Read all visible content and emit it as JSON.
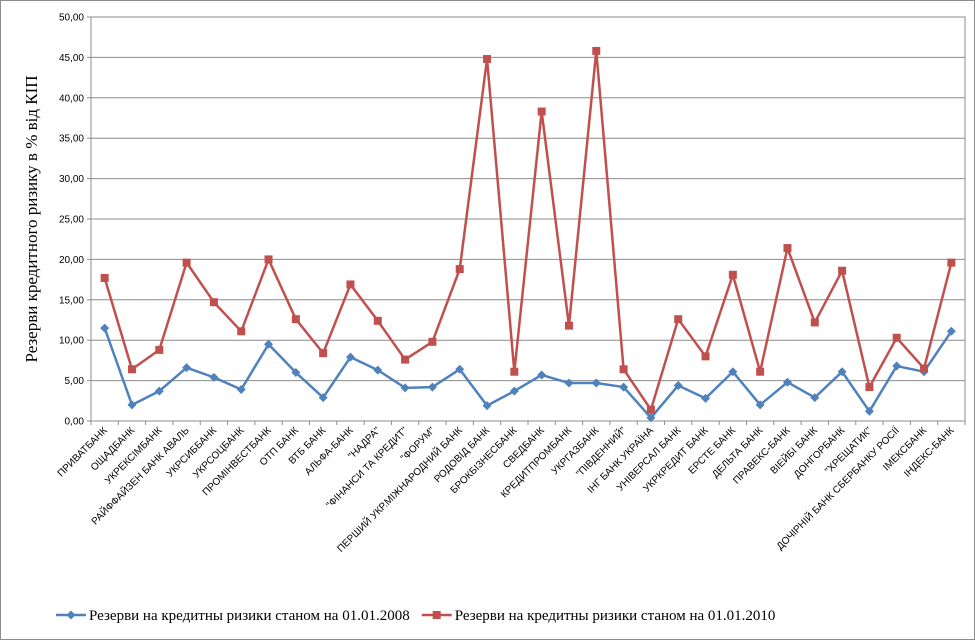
{
  "chart_data": {
    "type": "line",
    "ylabel": "Резерви кредитного ризику в % від КІП",
    "ylim": [
      0,
      50
    ],
    "yticks": [
      "0,00",
      "5,00",
      "10,00",
      "15,00",
      "20,00",
      "25,00",
      "30,00",
      "35,00",
      "40,00",
      "45,00",
      "50,00"
    ],
    "grid": true,
    "legend_position": "bottom",
    "categories": [
      "ПРИВАТБАНК",
      "ОЩАДБАНК",
      "УКРЕКСІМБАНК",
      "РАЙФФАЙЗЕН БАНК АВАЛЬ",
      "УКРСИББАНК",
      "УКРСОЦБАНК",
      "ПРОМІНВЕСТБАНК",
      "ОТП БАНК",
      "ВТБ БАНК",
      "АЛЬФА-БАНК",
      "\"НАДРА\"",
      "\"ФІНАНСИ ТА КРЕДИТ\"",
      "\"ФОРУМ\"",
      "ПЕРШИЙ УКР.МІЖНАРОДНИЙ БАНК",
      "РОДОВІД БАНК",
      "БРОКБІЗНЕСБАНК",
      "СВЕДБАНК",
      "КРЕДИТПРОМБАНК",
      "УКРГАЗБАНК",
      "\"ПІВДЕННИЙ\"",
      "ІНГ БАНК УКРАЇНА",
      "УНІВЕРСАЛ БАНК",
      "УКРКРЕДИТ БАНК",
      "ЕРСТЕ БАНК",
      "ДЕЛЬТА БАНК",
      "ПРАВЕКС-БАНК",
      "ВІЕЙБІ БАНК",
      "ДОНГОРБАНК",
      "\"ХРЕЩАТИК\"",
      "ДОЧІРНІЙ БАНК СБЕРБАНКУ РОСІЇ",
      "ІМЕКСБАНК",
      "ІНДЕКС-БАНК"
    ],
    "series": [
      {
        "name": "Резерви на кредитны ризики станом на 01.01.2008",
        "color": "#4f81bd",
        "marker": "diamond",
        "values": [
          11.5,
          2.0,
          3.7,
          6.6,
          5.4,
          3.9,
          9.5,
          6.0,
          2.9,
          7.9,
          6.3,
          4.1,
          4.2,
          6.4,
          1.9,
          3.7,
          5.7,
          4.7,
          4.7,
          4.2,
          0.4,
          4.4,
          2.8,
          6.1,
          2.0,
          4.8,
          2.9,
          6.1,
          1.2,
          6.8,
          6.1,
          11.1
        ]
      },
      {
        "name": "Резерви на кредитны ризики станом на 01.01.2010",
        "color": "#c0504d",
        "marker": "square",
        "values": [
          17.7,
          6.4,
          8.8,
          19.6,
          14.7,
          11.1,
          20.0,
          12.6,
          8.4,
          16.9,
          12.4,
          7.6,
          9.8,
          18.8,
          44.8,
          6.1,
          38.3,
          11.8,
          45.8,
          6.4,
          1.4,
          12.6,
          8.0,
          18.1,
          6.1,
          21.4,
          12.2,
          18.6,
          4.2,
          10.3,
          6.5,
          19.6
        ]
      }
    ]
  }
}
